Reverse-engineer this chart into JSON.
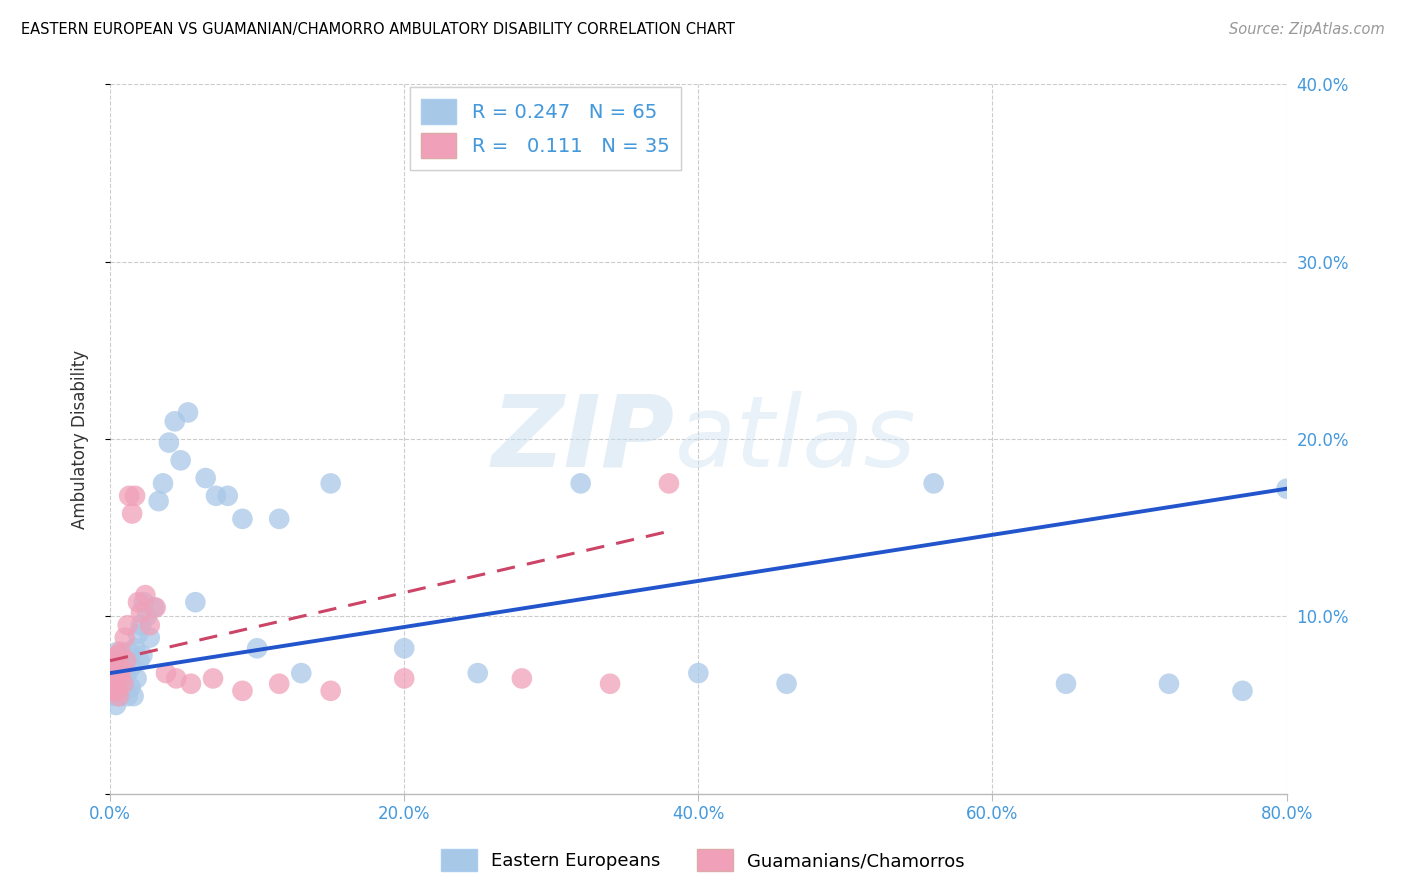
{
  "title": "EASTERN EUROPEAN VS GUAMANIAN/CHAMORRO AMBULATORY DISABILITY CORRELATION CHART",
  "source": "Source: ZipAtlas.com",
  "ylabel": "Ambulatory Disability",
  "xlim": [
    0,
    0.8
  ],
  "ylim": [
    0,
    0.4
  ],
  "xticks": [
    0.0,
    0.2,
    0.4,
    0.6,
    0.8
  ],
  "yticks": [
    0.0,
    0.1,
    0.2,
    0.3,
    0.4
  ],
  "xtick_labels": [
    "0.0%",
    "20.0%",
    "40.0%",
    "60.0%",
    "80.0%"
  ],
  "ytick_labels": [
    "",
    "10.0%",
    "20.0%",
    "30.0%",
    "40.0%"
  ],
  "R_blue": 0.247,
  "N_blue": 65,
  "R_pink": 0.111,
  "N_pink": 35,
  "blue_color": "#A8C8E8",
  "pink_color": "#F0A0B8",
  "trend_blue_color": "#2255CC",
  "trend_pink_color": "#CC4466",
  "legend_label_blue": "Eastern Europeans",
  "legend_label_pink": "Guamanians/Chamorros",
  "blue_x": [
    0.001,
    0.002,
    0.002,
    0.003,
    0.003,
    0.004,
    0.004,
    0.004,
    0.005,
    0.005,
    0.005,
    0.006,
    0.006,
    0.006,
    0.007,
    0.007,
    0.007,
    0.008,
    0.008,
    0.009,
    0.009,
    0.01,
    0.01,
    0.011,
    0.012,
    0.012,
    0.013,
    0.014,
    0.015,
    0.016,
    0.017,
    0.018,
    0.019,
    0.02,
    0.021,
    0.022,
    0.023,
    0.025,
    0.027,
    0.03,
    0.033,
    0.036,
    0.04,
    0.044,
    0.048,
    0.053,
    0.058,
    0.065,
    0.072,
    0.08,
    0.09,
    0.1,
    0.115,
    0.13,
    0.15,
    0.2,
    0.25,
    0.32,
    0.4,
    0.46,
    0.56,
    0.65,
    0.72,
    0.77,
    0.8
  ],
  "blue_y": [
    0.055,
    0.062,
    0.07,
    0.058,
    0.075,
    0.05,
    0.065,
    0.072,
    0.055,
    0.068,
    0.08,
    0.06,
    0.072,
    0.078,
    0.055,
    0.063,
    0.068,
    0.058,
    0.075,
    0.062,
    0.07,
    0.058,
    0.065,
    0.075,
    0.055,
    0.068,
    0.08,
    0.06,
    0.072,
    0.055,
    0.082,
    0.065,
    0.09,
    0.075,
    0.095,
    0.078,
    0.108,
    0.1,
    0.088,
    0.105,
    0.165,
    0.175,
    0.198,
    0.21,
    0.188,
    0.215,
    0.108,
    0.178,
    0.168,
    0.168,
    0.155,
    0.082,
    0.155,
    0.068,
    0.175,
    0.082,
    0.068,
    0.175,
    0.068,
    0.062,
    0.175,
    0.062,
    0.062,
    0.058,
    0.172
  ],
  "pink_x": [
    0.001,
    0.002,
    0.002,
    0.003,
    0.003,
    0.004,
    0.005,
    0.005,
    0.006,
    0.007,
    0.007,
    0.008,
    0.009,
    0.01,
    0.011,
    0.012,
    0.013,
    0.015,
    0.017,
    0.019,
    0.021,
    0.024,
    0.027,
    0.031,
    0.038,
    0.045,
    0.055,
    0.07,
    0.09,
    0.115,
    0.15,
    0.2,
    0.28,
    0.34,
    0.38
  ],
  "pink_y": [
    0.06,
    0.068,
    0.075,
    0.058,
    0.072,
    0.065,
    0.058,
    0.078,
    0.055,
    0.065,
    0.08,
    0.07,
    0.062,
    0.088,
    0.075,
    0.095,
    0.168,
    0.158,
    0.168,
    0.108,
    0.102,
    0.112,
    0.095,
    0.105,
    0.068,
    0.065,
    0.062,
    0.065,
    0.058,
    0.062,
    0.058,
    0.065,
    0.065,
    0.062,
    0.175
  ],
  "blue_trend_start_y": 0.068,
  "blue_trend_end_y": 0.172,
  "pink_trend_start_y": 0.075,
  "pink_trend_end_y": 0.148
}
